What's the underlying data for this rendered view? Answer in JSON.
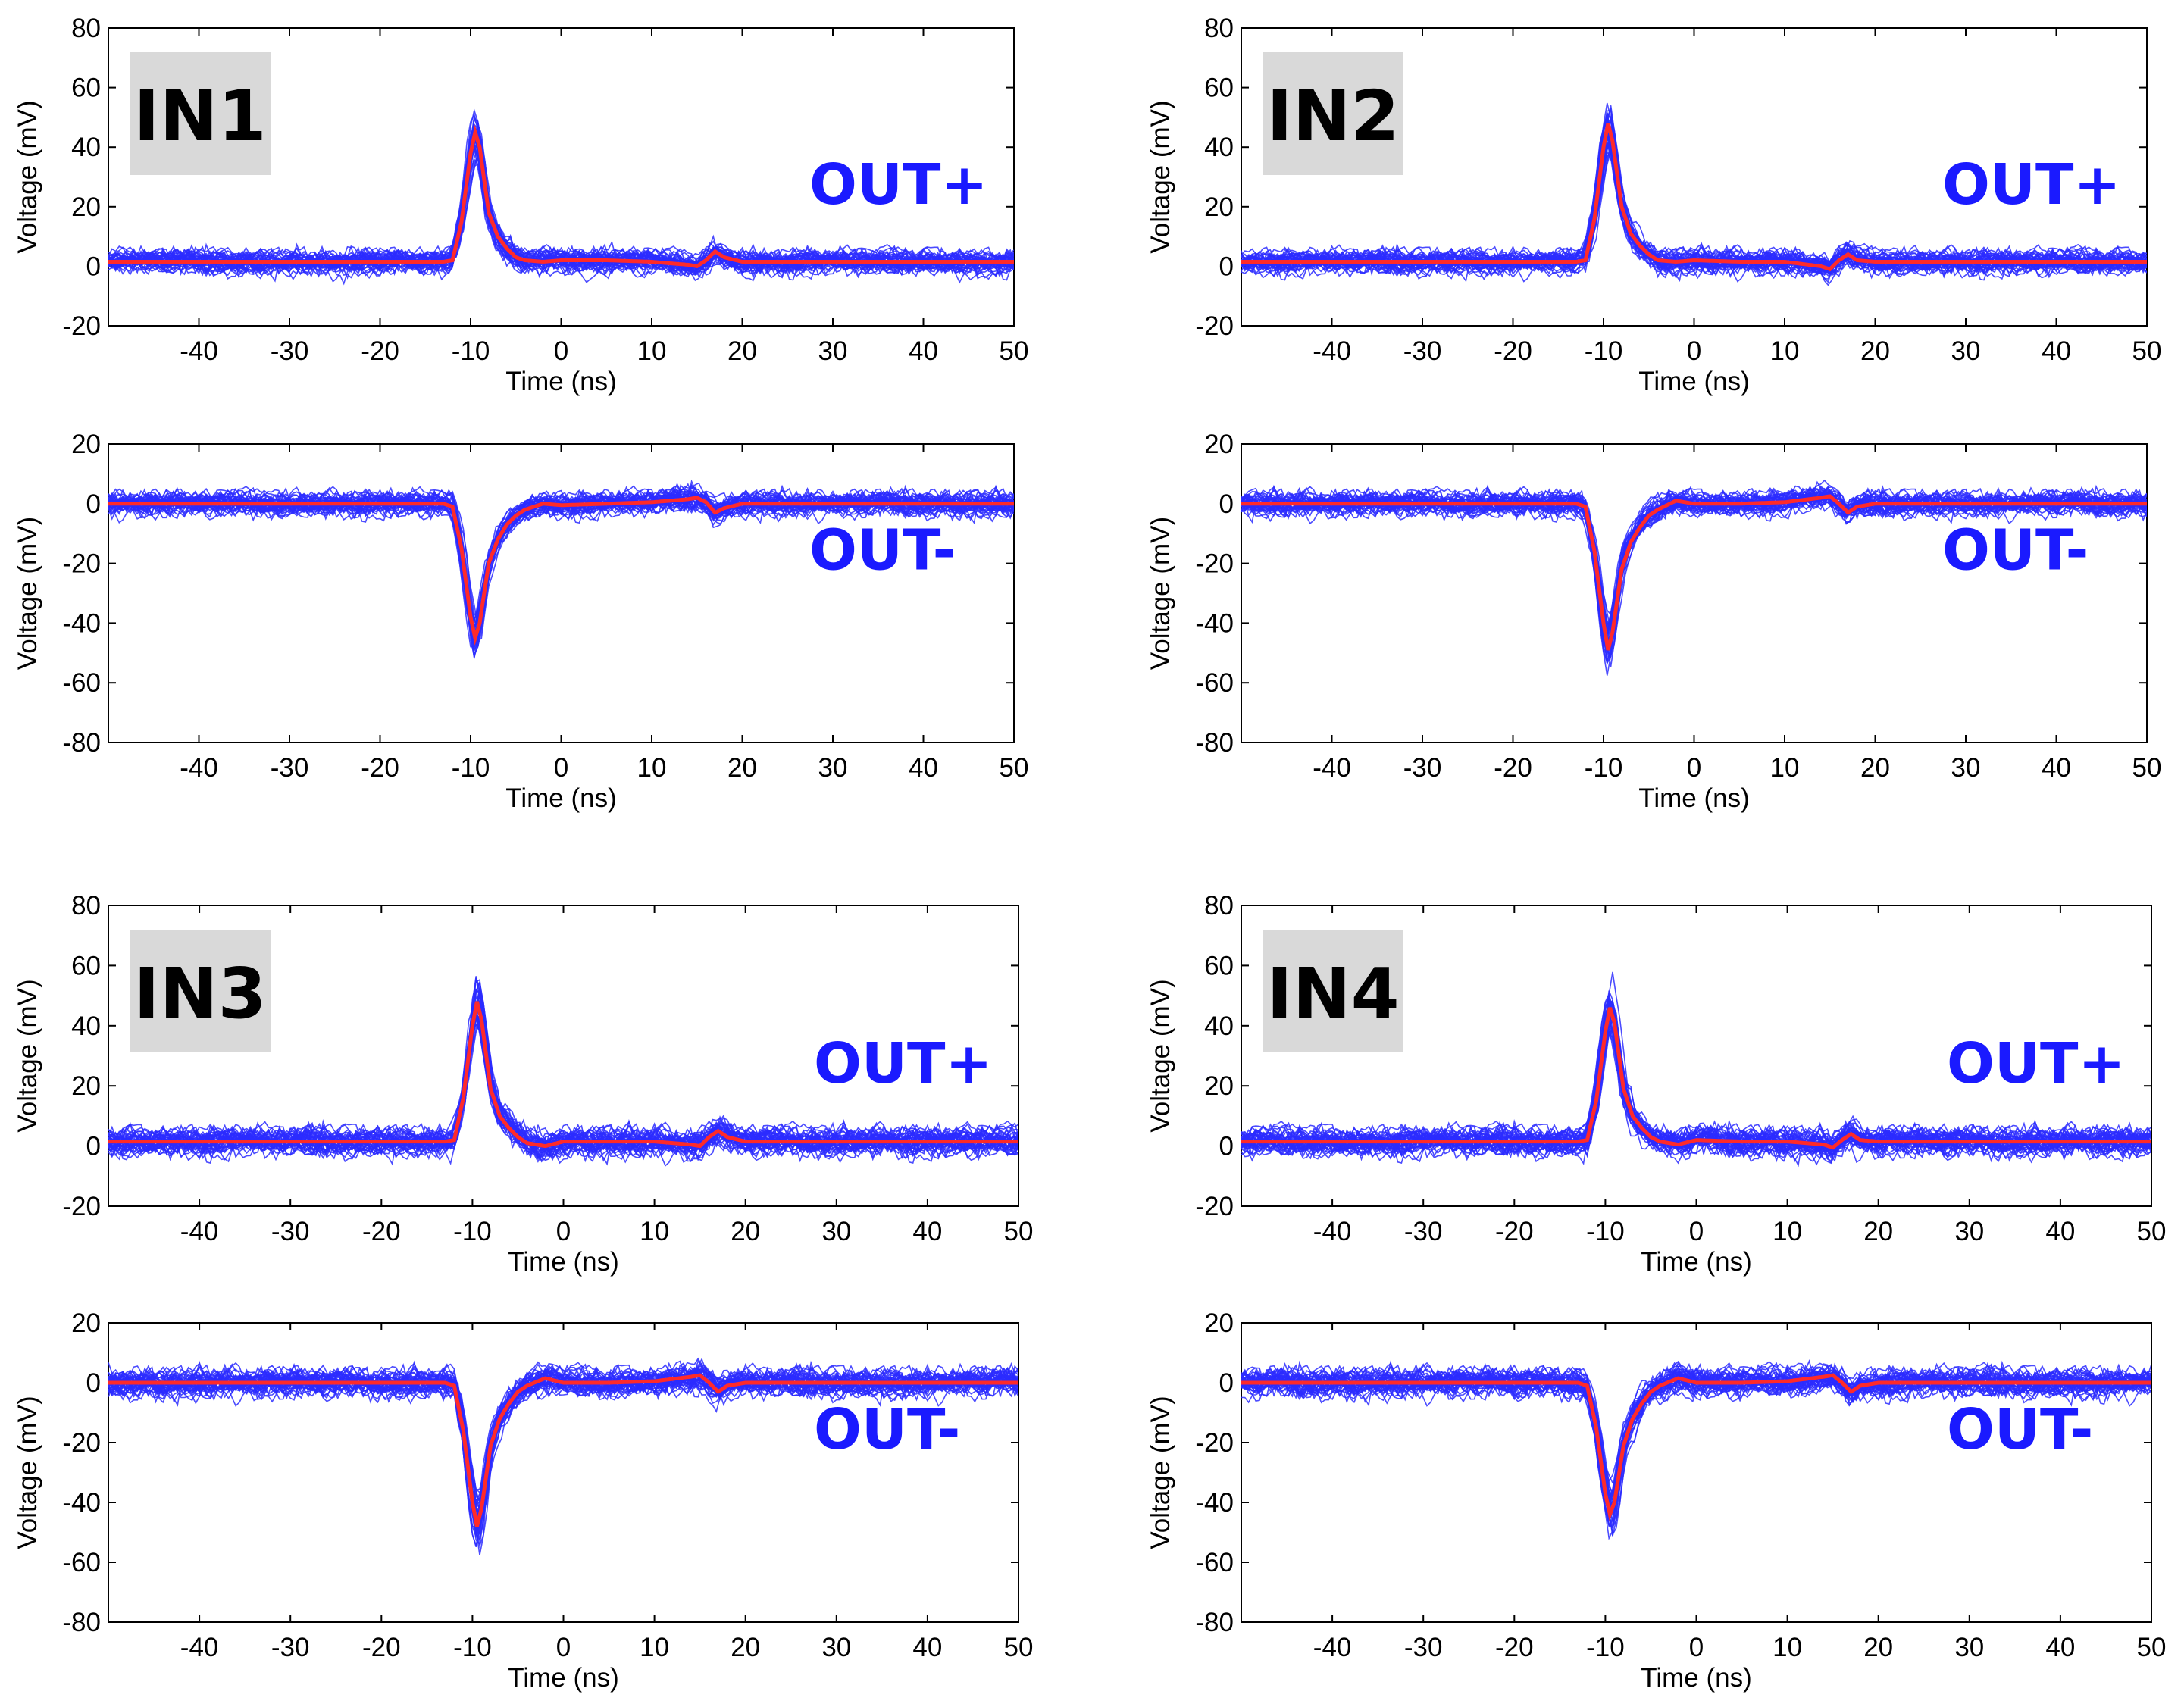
{
  "figure": {
    "colors": {
      "traces": "#2b2bff",
      "mean": "#ff2a2a",
      "label": "#1a1aff",
      "tag_bg": "#d9d9d9"
    }
  },
  "chart_data": [
    {
      "type": "line",
      "panel": "IN1",
      "tag": "IN1",
      "channel": "OUT+",
      "label": "OUT+",
      "xlabel": "Time (ns)",
      "ylabel": "Voltage (mV)",
      "xlim": [
        -50,
        50
      ],
      "ylim": [
        -20,
        80
      ],
      "xticks": [
        -40,
        -30,
        -20,
        -10,
        0,
        10,
        20,
        30,
        40,
        50
      ],
      "yticks": [
        -20,
        0,
        20,
        40,
        60,
        80
      ],
      "series_description": "many blue single-shot traces with red average",
      "mean": {
        "x": [
          -50,
          -13,
          -12,
          -11,
          -10,
          -9.5,
          -9,
          -8,
          -7,
          -6,
          -5,
          -4,
          -2,
          0,
          5,
          10,
          14,
          15,
          16,
          17,
          18,
          20,
          30,
          40,
          50
        ],
        "y": [
          1.5,
          1.5,
          2,
          15,
          38,
          45,
          40,
          18,
          10,
          6,
          3,
          2,
          1.5,
          2,
          2,
          1.5,
          0.5,
          0,
          2,
          5,
          3,
          1.5,
          1.5,
          1.5,
          1.5
        ]
      },
      "traces": {
        "count": 40,
        "noise_mV": 3,
        "peak_mV": 48
      }
    },
    {
      "type": "line",
      "panel": "IN1",
      "tag": "",
      "channel": "OUT-",
      "label": "OUT-",
      "xlabel": "Time (ns)",
      "ylabel": "Voltage (mV)",
      "xlim": [
        -50,
        50
      ],
      "ylim": [
        -80,
        20
      ],
      "xticks": [
        -40,
        -30,
        -20,
        -10,
        0,
        10,
        20,
        30,
        40,
        50
      ],
      "yticks": [
        -80,
        -60,
        -40,
        -20,
        0,
        20
      ],
      "mean": {
        "x": [
          -50,
          -13,
          -12,
          -11,
          -10,
          -9.5,
          -9,
          -8,
          -7,
          -6,
          -5,
          -4,
          -2,
          0,
          5,
          10,
          14,
          15,
          16,
          17,
          18,
          20,
          30,
          40,
          50
        ],
        "y": [
          0,
          0,
          -1,
          -15,
          -38,
          -45,
          -40,
          -20,
          -12,
          -7,
          -4,
          -2,
          0,
          -0.5,
          0,
          0.5,
          1.5,
          2,
          0.5,
          -3,
          -1.5,
          0,
          0,
          0,
          0
        ]
      },
      "traces": {
        "count": 40,
        "noise_mV": 3,
        "peak_mV": -48
      }
    },
    {
      "type": "line",
      "panel": "IN2",
      "tag": "IN2",
      "channel": "OUT+",
      "label": "OUT+",
      "xlabel": "Time (ns)",
      "ylabel": "Voltage (mV)",
      "xlim": [
        -50,
        50
      ],
      "ylim": [
        -20,
        80
      ],
      "xticks": [
        -40,
        -30,
        -20,
        -10,
        0,
        10,
        20,
        30,
        40,
        50
      ],
      "yticks": [
        -20,
        0,
        20,
        40,
        60,
        80
      ],
      "mean": {
        "x": [
          -50,
          -13,
          -12,
          -11,
          -10,
          -9.5,
          -9,
          -8,
          -7,
          -6,
          -5,
          -4,
          -2,
          0,
          5,
          10,
          14,
          15,
          16,
          17,
          18,
          20,
          30,
          40,
          50
        ],
        "y": [
          1.5,
          1.5,
          2,
          16,
          40,
          48,
          42,
          20,
          11,
          7,
          4,
          2,
          1.5,
          2,
          1.5,
          1.5,
          0,
          -1,
          2,
          4,
          2,
          1.5,
          1.5,
          1.5,
          1.5
        ]
      },
      "traces": {
        "count": 40,
        "noise_mV": 3,
        "peak_mV": 51
      }
    },
    {
      "type": "line",
      "panel": "IN2",
      "tag": "",
      "channel": "OUT-",
      "label": "OUT-",
      "xlabel": "Time (ns)",
      "ylabel": "Voltage (mV)",
      "xlim": [
        -50,
        50
      ],
      "ylim": [
        -80,
        20
      ],
      "xticks": [
        -40,
        -30,
        -20,
        -10,
        0,
        10,
        20,
        30,
        40,
        50
      ],
      "yticks": [
        -80,
        -60,
        -40,
        -20,
        0,
        20
      ],
      "mean": {
        "x": [
          -50,
          -13,
          -12,
          -11,
          -10,
          -9.5,
          -9,
          -8,
          -7,
          -6,
          -5,
          -4,
          -2,
          0,
          5,
          10,
          14,
          15,
          16,
          17,
          18,
          20,
          30,
          40,
          50
        ],
        "y": [
          0,
          0,
          -1,
          -16,
          -40,
          -49,
          -43,
          -22,
          -13,
          -8,
          -4,
          -2,
          1,
          0,
          0,
          0.5,
          2,
          2.5,
          0,
          -3,
          -1,
          0,
          0,
          0,
          0
        ]
      },
      "traces": {
        "count": 40,
        "noise_mV": 3,
        "peak_mV": -51
      }
    },
    {
      "type": "line",
      "panel": "IN3",
      "tag": "IN3",
      "channel": "OUT+",
      "label": "OUT+",
      "xlabel": "Time (ns)",
      "ylabel": "Voltage (mV)",
      "xlim": [
        -50,
        50
      ],
      "ylim": [
        -20,
        80
      ],
      "xticks": [
        -40,
        -30,
        -20,
        -10,
        0,
        10,
        20,
        30,
        40,
        50
      ],
      "yticks": [
        -20,
        0,
        20,
        40,
        60,
        80
      ],
      "mean": {
        "x": [
          -50,
          -13,
          -12,
          -11,
          -10,
          -9.5,
          -9,
          -8,
          -7,
          -6,
          -5,
          -4,
          -2,
          0,
          5,
          10,
          14,
          15,
          16,
          17,
          18,
          20,
          30,
          40,
          50
        ],
        "y": [
          1.5,
          1.5,
          2,
          16,
          40,
          48,
          42,
          19,
          10,
          6,
          3,
          1,
          0,
          1.5,
          1.5,
          1.5,
          0.5,
          0,
          3,
          5,
          3,
          1.5,
          1.5,
          1.5,
          1.5
        ]
      },
      "traces": {
        "count": 40,
        "noise_mV": 3.5,
        "peak_mV": 51
      }
    },
    {
      "type": "line",
      "panel": "IN3",
      "tag": "",
      "channel": "OUT-",
      "label": "OUT-",
      "xlabel": "Time (ns)",
      "ylabel": "Voltage (mV)",
      "xlim": [
        -50,
        50
      ],
      "ylim": [
        -80,
        20
      ],
      "xticks": [
        -40,
        -30,
        -20,
        -10,
        0,
        10,
        20,
        30,
        40,
        50
      ],
      "yticks": [
        -80,
        -60,
        -40,
        -20,
        0,
        20
      ],
      "mean": {
        "x": [
          -50,
          -13,
          -12,
          -11,
          -10,
          -9.5,
          -9,
          -8,
          -7,
          -6,
          -5,
          -4,
          -2,
          0,
          5,
          10,
          14,
          15,
          16,
          17,
          18,
          20,
          30,
          40,
          50
        ],
        "y": [
          0,
          0,
          -1,
          -16,
          -40,
          -48,
          -42,
          -21,
          -12,
          -7,
          -3,
          -1,
          1.5,
          0,
          0,
          0.5,
          2,
          2.5,
          0,
          -3,
          -1,
          0,
          0,
          0,
          0
        ]
      },
      "traces": {
        "count": 40,
        "noise_mV": 3.5,
        "peak_mV": -51
      }
    },
    {
      "type": "line",
      "panel": "IN4",
      "tag": "IN4",
      "channel": "OUT+",
      "label": "OUT+",
      "xlabel": "Time (ns)",
      "ylabel": "Voltage (mV)",
      "xlim": [
        -50,
        50
      ],
      "ylim": [
        -20,
        80
      ],
      "xticks": [
        -40,
        -30,
        -20,
        -10,
        0,
        10,
        20,
        30,
        40,
        50
      ],
      "yticks": [
        -20,
        0,
        20,
        40,
        60,
        80
      ],
      "mean": {
        "x": [
          -50,
          -13,
          -12,
          -11,
          -10,
          -9.5,
          -9,
          -8,
          -7,
          -6,
          -5,
          -4,
          -2,
          0,
          5,
          10,
          14,
          15,
          16,
          17,
          18,
          20,
          30,
          40,
          50
        ],
        "y": [
          1.5,
          1.5,
          2,
          15,
          38,
          46,
          41,
          19,
          10,
          6,
          3,
          1.5,
          0.5,
          2,
          1.5,
          1.5,
          0.5,
          -0.5,
          2,
          4,
          2,
          1.5,
          1.5,
          1.5,
          1.5
        ]
      },
      "traces": {
        "count": 40,
        "noise_mV": 3.5,
        "peak_mV": 50
      }
    },
    {
      "type": "line",
      "panel": "IN4",
      "tag": "",
      "channel": "OUT-",
      "label": "OUT-",
      "xlabel": "Time (ns)",
      "ylabel": "Voltage (mV)",
      "xlim": [
        -50,
        50
      ],
      "ylim": [
        -80,
        20
      ],
      "xticks": [
        -40,
        -30,
        -20,
        -10,
        0,
        10,
        20,
        30,
        40,
        50
      ],
      "yticks": [
        -80,
        -60,
        -40,
        -20,
        0,
        20
      ],
      "mean": {
        "x": [
          -50,
          -13,
          -12,
          -11,
          -10,
          -9.5,
          -9,
          -8,
          -7,
          -6,
          -5,
          -4,
          -2,
          0,
          5,
          10,
          14,
          15,
          16,
          17,
          18,
          20,
          30,
          40,
          50
        ],
        "y": [
          0,
          0,
          -1,
          -15,
          -37,
          -44,
          -40,
          -21,
          -12,
          -7,
          -3,
          -1,
          1.5,
          0,
          0,
          0.5,
          2,
          2.5,
          0,
          -3,
          -1,
          0,
          0,
          0,
          0
        ]
      },
      "traces": {
        "count": 40,
        "noise_mV": 3.5,
        "peak_mV": -48
      }
    }
  ]
}
